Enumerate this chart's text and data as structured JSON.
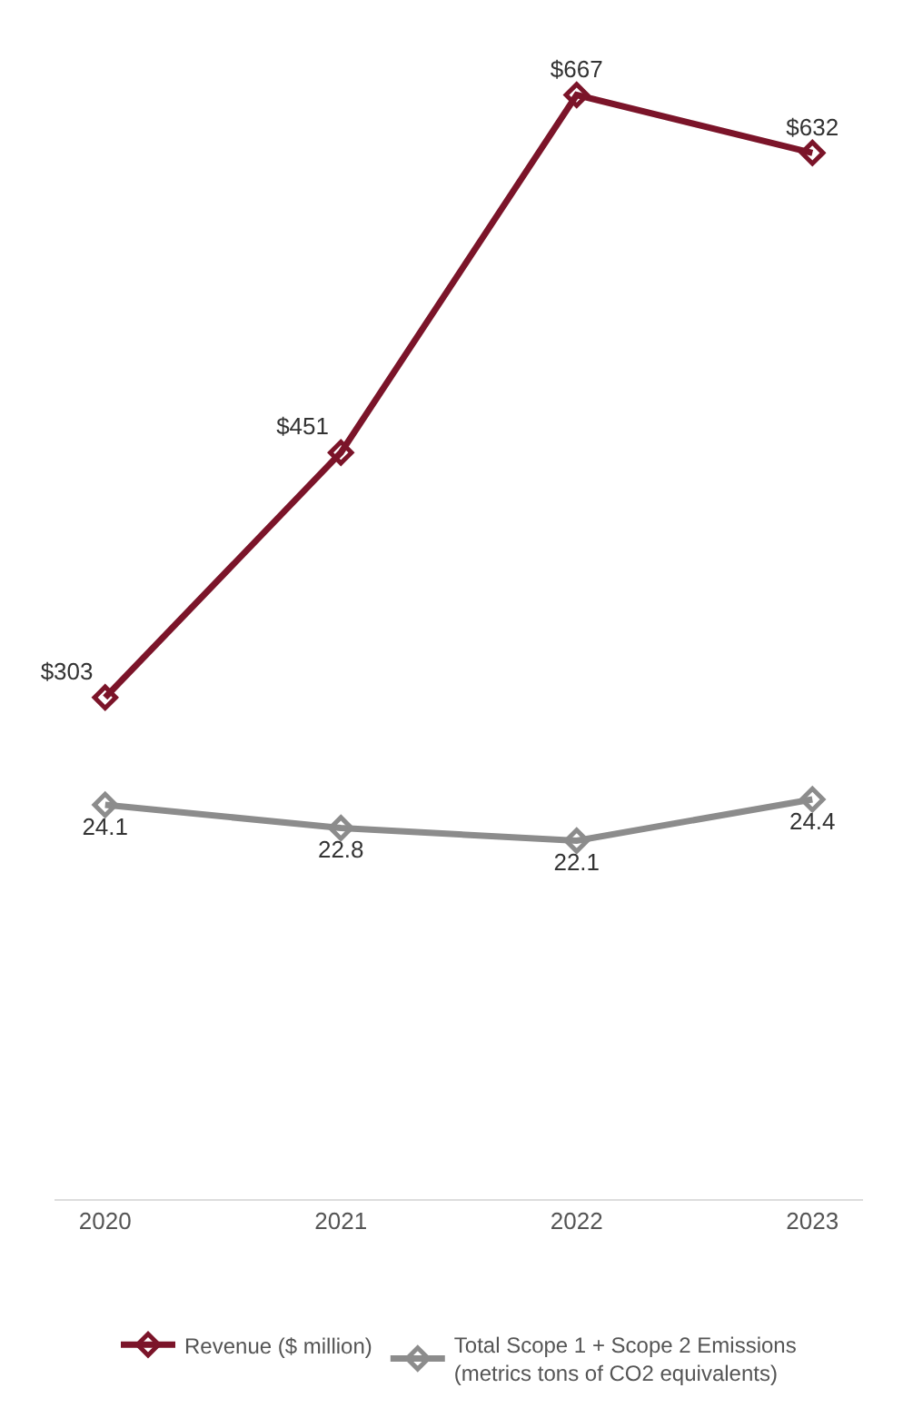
{
  "chart_data": {
    "type": "line",
    "categories": [
      "2020",
      "2021",
      "2022",
      "2023"
    ],
    "series": [
      {
        "name": "Revenue ($ million)",
        "color": "#7b1429",
        "values": [
          303,
          451,
          667,
          632
        ],
        "value_labels": [
          "$303",
          "$451",
          "$667",
          "$632"
        ]
      },
      {
        "name": "Total Scope 1 + Scope 2 Emissions (metrics tons of CO2 equivalents)",
        "color": "#8c8c8c",
        "values": [
          24.1,
          22.8,
          22.1,
          24.4
        ],
        "value_labels": [
          "24.1",
          "22.8",
          "22.1",
          "24.4"
        ],
        "axis": "y2"
      }
    ],
    "ylim": [
      0,
      720
    ],
    "y2lim": [
      2.1,
      68.6
    ],
    "tick_labels": "x",
    "legend": "bottom",
    "marker": "diamond",
    "line_style": "solid"
  }
}
